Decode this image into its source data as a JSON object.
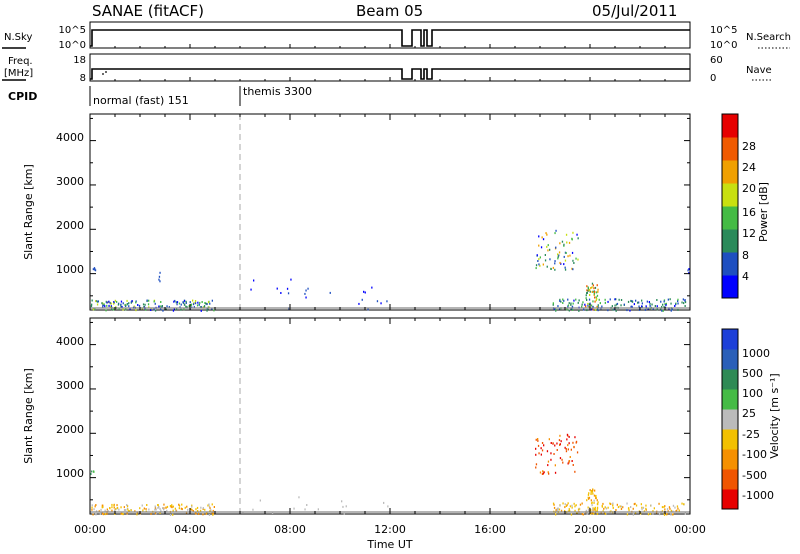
{
  "header": {
    "station": "SANAE (fitACF)",
    "beam": "Beam 05",
    "date": "05/Jul/2011"
  },
  "nsky_panel": {
    "left_label": "N.Sky",
    "left_ticks": [
      "10^5",
      "10^0"
    ],
    "right_label": "N.Search",
    "right_ticks": [
      "10^5",
      "10^0"
    ]
  },
  "freq_panel": {
    "left_label_line1": "Freq.",
    "left_label_line2": "[MHz]",
    "left_ticks": [
      "18",
      "8"
    ],
    "right_label": "Nave",
    "right_ticks": [
      "60",
      "0"
    ]
  },
  "cpid": {
    "label": "CPID",
    "modes": [
      {
        "name": "normal (fast) 151",
        "start_hour": 0
      },
      {
        "name": "themis 3300",
        "start_hour": 6
      }
    ]
  },
  "x_axis": {
    "label": "Time UT",
    "ticks": [
      "00:00",
      "04:00",
      "08:00",
      "12:00",
      "16:00",
      "20:00",
      "00:00"
    ],
    "range_hours": [
      0,
      24
    ]
  },
  "power_panel": {
    "ylabel": "Slant Range [km]",
    "yticks": [
      "4000",
      "3000",
      "2000",
      "1000"
    ],
    "colorbar_label": "Power [dB]",
    "colorbar_ticks": [
      "28",
      "24",
      "20",
      "16",
      "12",
      "8",
      "4"
    ],
    "colors": [
      "#0000ff",
      "#1e4fc0",
      "#2a8a5a",
      "#44bb44",
      "#c8e010",
      "#f0a000",
      "#f05a00",
      "#e60000"
    ]
  },
  "velocity_panel": {
    "ylabel": "Slant Range [km]",
    "yticks": [
      "4000",
      "3000",
      "2000",
      "1000"
    ],
    "colorbar_label": "Velocity [m s⁻¹]",
    "colorbar_ticks": [
      "1000",
      "500",
      "100",
      "25",
      "-25",
      "-100",
      "-500",
      "-1000"
    ],
    "colors": [
      "#1c3fd8",
      "#2a5fb8",
      "#2f8a55",
      "#45bb45",
      "#bbbbbb",
      "#f2c000",
      "#f59000",
      "#f05500",
      "#e60000"
    ]
  },
  "chart_data": [
    {
      "type": "heatmap",
      "title": "Power",
      "xlabel": "Time UT",
      "ylabel": "Slant Range [km]",
      "xlim": [
        0,
        24
      ],
      "ylim": [
        180,
        4600
      ],
      "clim": [
        0,
        32
      ],
      "clusters": [
        {
          "t0": 0.0,
          "t1": 5.0,
          "r0": 180,
          "r1": 420,
          "v0": 2,
          "v1": 20,
          "n": 170
        },
        {
          "t0": 0.0,
          "t1": 0.2,
          "r0": 1050,
          "r1": 1250,
          "v0": 4,
          "v1": 8,
          "n": 5
        },
        {
          "t0": 2.7,
          "t1": 2.8,
          "r0": 850,
          "r1": 1100,
          "v0": 4,
          "v1": 8,
          "n": 4
        },
        {
          "t0": 6.0,
          "t1": 12.0,
          "r0": 200,
          "r1": 900,
          "v0": 2,
          "v1": 8,
          "n": 22
        },
        {
          "t0": 17.8,
          "t1": 19.5,
          "r0": 1100,
          "r1": 2000,
          "v0": 2,
          "v1": 26,
          "n": 70
        },
        {
          "t0": 19.8,
          "t1": 20.3,
          "r0": 200,
          "r1": 800,
          "v0": 8,
          "v1": 28,
          "n": 45
        },
        {
          "t0": 18.5,
          "t1": 23.8,
          "r0": 180,
          "r1": 450,
          "v0": 2,
          "v1": 14,
          "n": 150
        },
        {
          "t0": 23.8,
          "t1": 24.0,
          "r0": 1000,
          "r1": 1200,
          "v0": 2,
          "v1": 6,
          "n": 3
        }
      ]
    },
    {
      "type": "heatmap",
      "title": "Velocity",
      "xlabel": "Time UT",
      "ylabel": "Slant Range [km]",
      "xlim": [
        0,
        24
      ],
      "ylim": [
        180,
        4600
      ],
      "clim": [
        -1000,
        1000
      ],
      "clusters": [
        {
          "t0": 0.0,
          "t1": 5.0,
          "r0": 180,
          "r1": 420,
          "v0": -500,
          "v1": 100,
          "n": 150
        },
        {
          "t0": 0.0,
          "t1": 0.2,
          "r0": 1050,
          "r1": 1250,
          "v0": 100,
          "v1": 500,
          "n": 4
        },
        {
          "t0": 6.0,
          "t1": 12.0,
          "r0": 200,
          "r1": 600,
          "v0": -100,
          "v1": 25,
          "n": 15
        },
        {
          "t0": 17.8,
          "t1": 19.5,
          "r0": 1100,
          "r1": 2000,
          "v0": -1000,
          "v1": -500,
          "n": 70
        },
        {
          "t0": 19.8,
          "t1": 20.3,
          "r0": 200,
          "r1": 800,
          "v0": -500,
          "v1": -100,
          "n": 45
        },
        {
          "t0": 18.5,
          "t1": 23.8,
          "r0": 180,
          "r1": 450,
          "v0": -500,
          "v1": -25,
          "n": 150
        }
      ]
    }
  ]
}
